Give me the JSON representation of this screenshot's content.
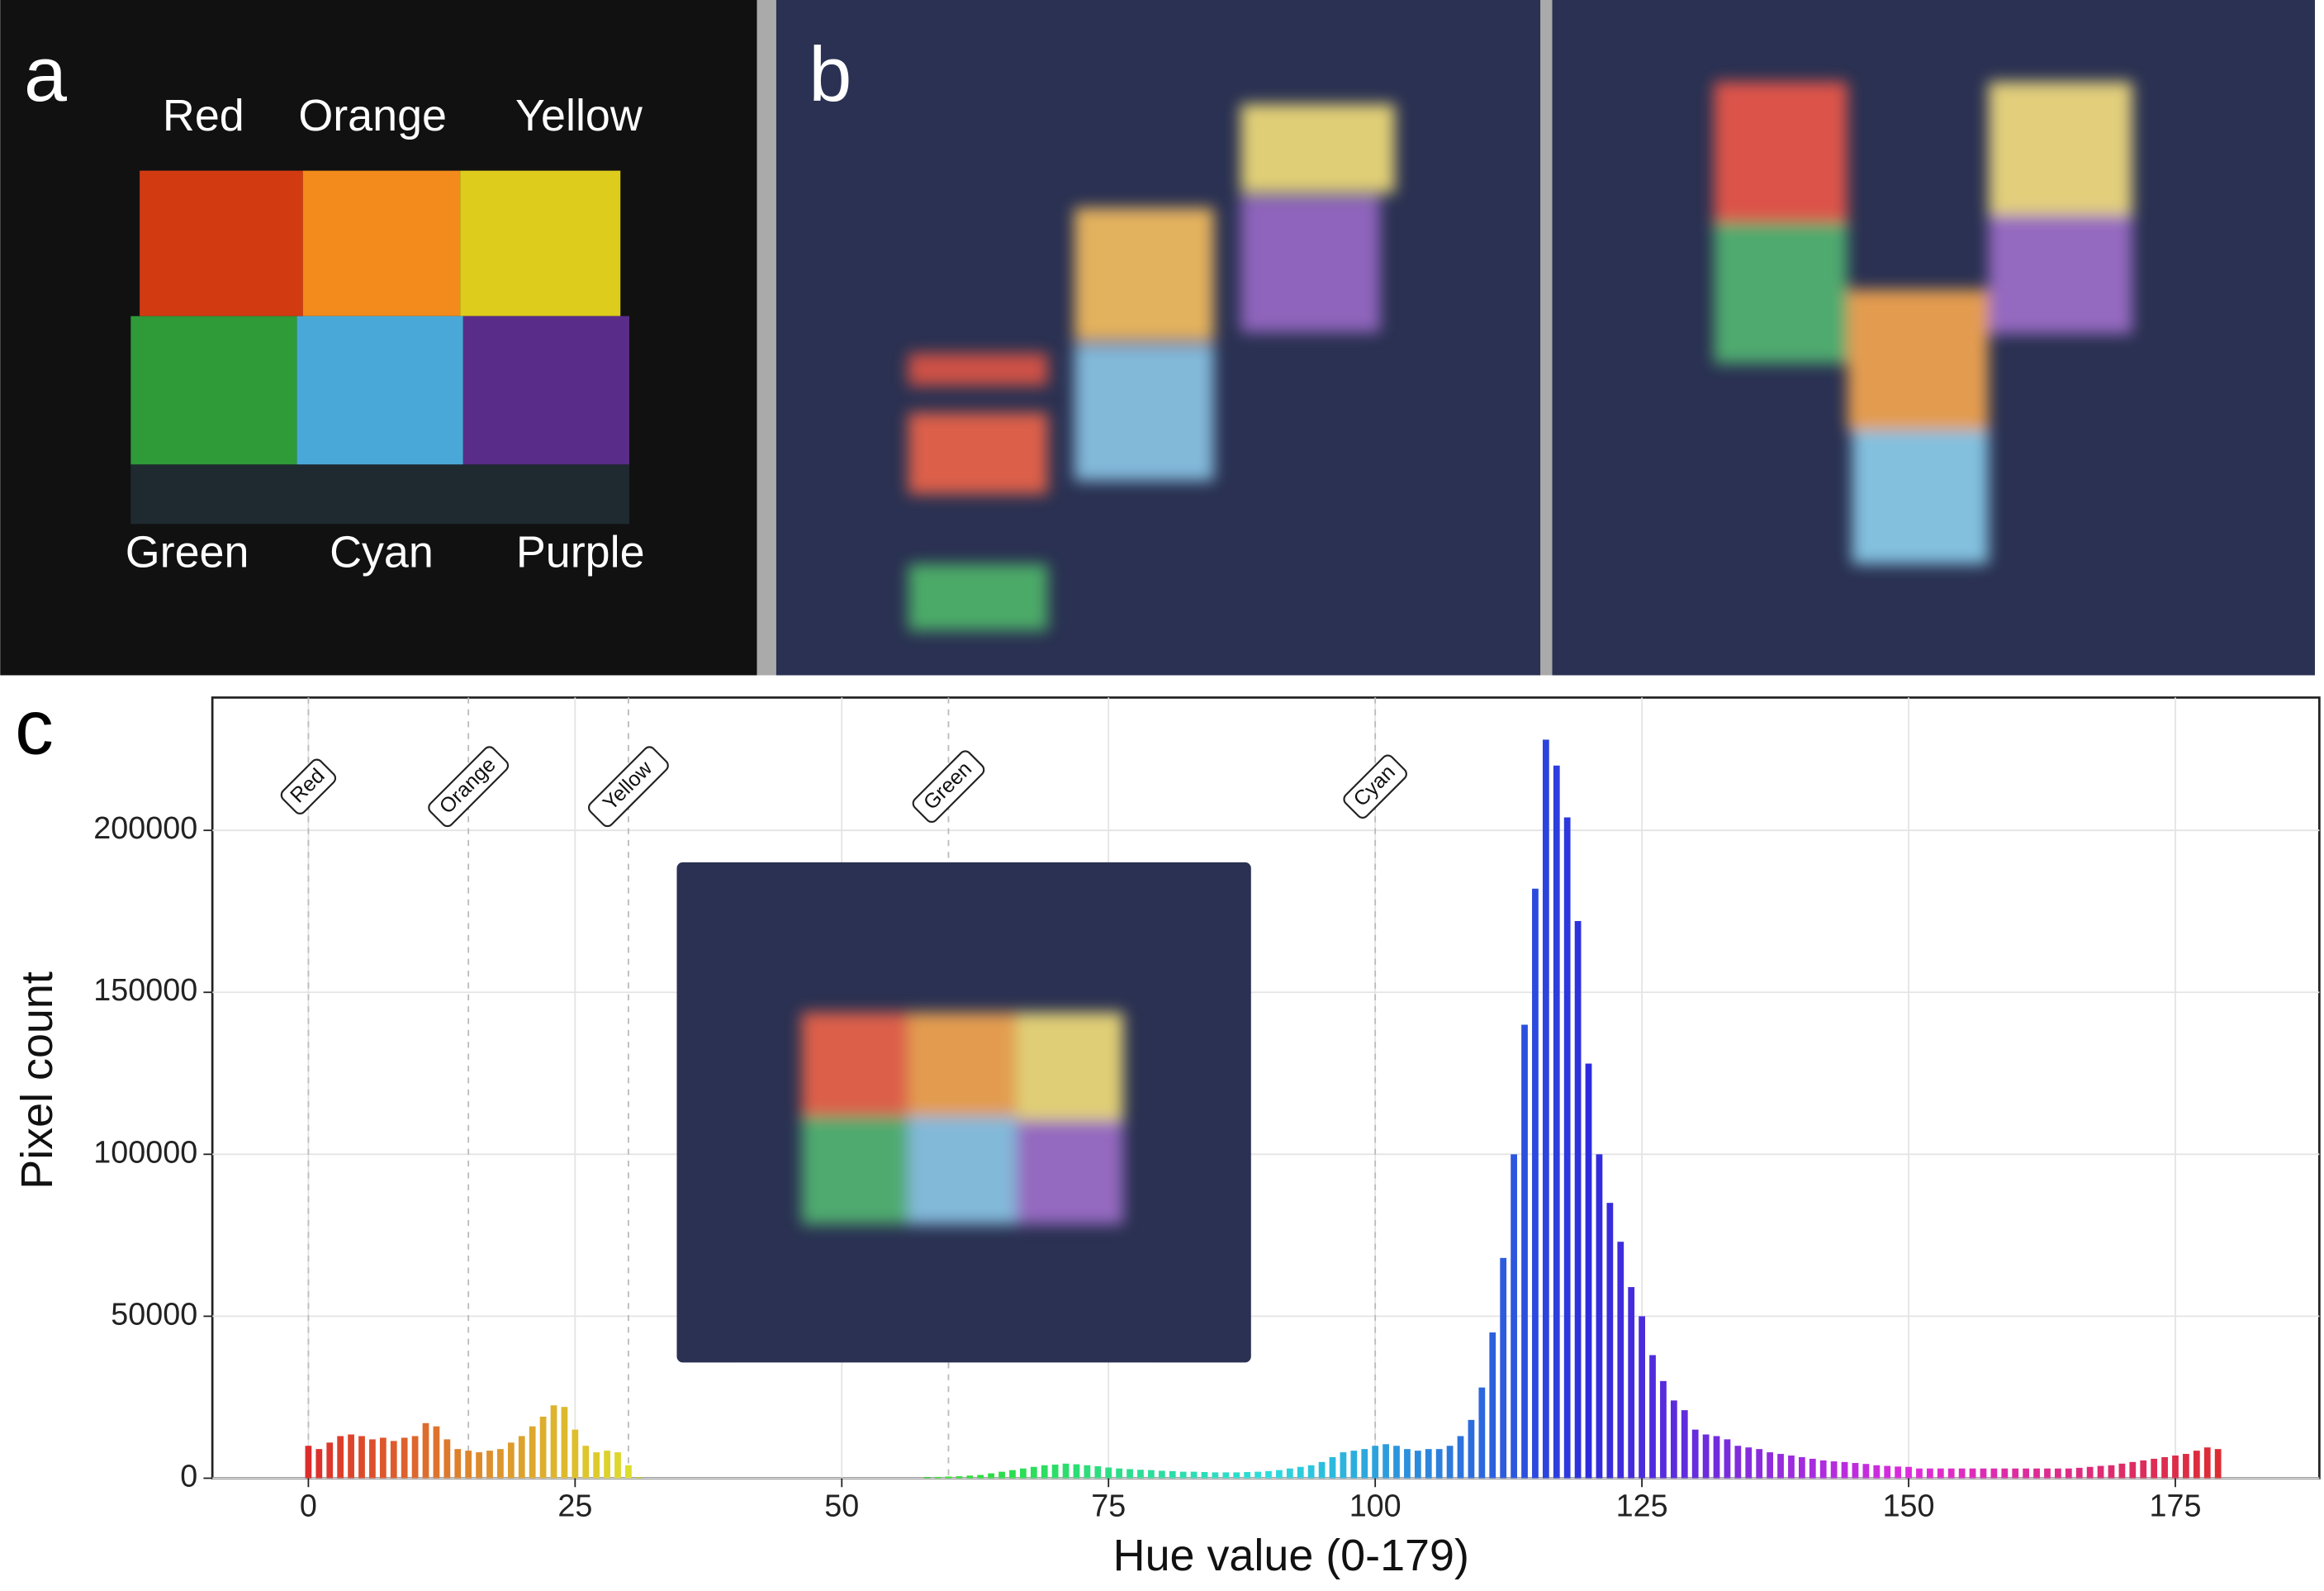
{
  "panels": {
    "a": {
      "label": "a",
      "colors": [
        "Red",
        "Orange",
        "Yellow",
        "Green",
        "Cyan",
        "Purple"
      ]
    },
    "b": {
      "label": "b"
    },
    "c": {
      "label": "c"
    }
  },
  "chart_data": {
    "type": "bar",
    "xlabel": "Hue value (0-179)",
    "ylabel": "Pixel count",
    "colormap": "hsv",
    "x": [
      0,
      1,
      2,
      3,
      4,
      5,
      6,
      7,
      8,
      9,
      10,
      11,
      12,
      13,
      14,
      15,
      16,
      17,
      18,
      19,
      20,
      21,
      22,
      23,
      24,
      25,
      26,
      27,
      28,
      29,
      30,
      31,
      32,
      33,
      34,
      35,
      36,
      37,
      38,
      39,
      40,
      41,
      42,
      43,
      44,
      45,
      46,
      47,
      48,
      49,
      50,
      51,
      52,
      53,
      54,
      55,
      56,
      57,
      58,
      59,
      60,
      61,
      62,
      63,
      64,
      65,
      66,
      67,
      68,
      69,
      70,
      71,
      72,
      73,
      74,
      75,
      76,
      77,
      78,
      79,
      80,
      81,
      82,
      83,
      84,
      85,
      86,
      87,
      88,
      89,
      90,
      91,
      92,
      93,
      94,
      95,
      96,
      97,
      98,
      99,
      100,
      101,
      102,
      103,
      104,
      105,
      106,
      107,
      108,
      109,
      110,
      111,
      112,
      113,
      114,
      115,
      116,
      117,
      118,
      119,
      120,
      121,
      122,
      123,
      124,
      125,
      126,
      127,
      128,
      129,
      130,
      131,
      132,
      133,
      134,
      135,
      136,
      137,
      138,
      139,
      140,
      141,
      142,
      143,
      144,
      145,
      146,
      147,
      148,
      149,
      150,
      151,
      152,
      153,
      154,
      155,
      156,
      157,
      158,
      159,
      160,
      161,
      162,
      163,
      164,
      165,
      166,
      167,
      168,
      169,
      170,
      171,
      172,
      173,
      174,
      175,
      176,
      177,
      178,
      179
    ],
    "values": [
      10000,
      9000,
      11000,
      13000,
      13500,
      13000,
      12000,
      12500,
      11500,
      12500,
      13000,
      17000,
      16000,
      12000,
      9000,
      8500,
      8000,
      8500,
      9000,
      11000,
      13000,
      16000,
      19000,
      22500,
      22000,
      15000,
      10000,
      8000,
      8500,
      8000,
      4000,
      300,
      0,
      0,
      0,
      0,
      0,
      0,
      0,
      0,
      0,
      0,
      0,
      0,
      0,
      0,
      0,
      0,
      0,
      0,
      0,
      0,
      0,
      0,
      0,
      0,
      0,
      0,
      300,
      400,
      500,
      600,
      800,
      1000,
      1500,
      2000,
      2500,
      3000,
      3500,
      4000,
      4200,
      4500,
      4300,
      4000,
      3700,
      3300,
      3000,
      2800,
      2600,
      2500,
      2300,
      2200,
      2000,
      2000,
      1900,
      1800,
      1800,
      1800,
      1900,
      2000,
      2200,
      2500,
      3000,
      3500,
      4000,
      5000,
      6500,
      8000,
      8500,
      9000,
      10000,
      10500,
      10000,
      9000,
      8500,
      9000,
      9000,
      10000,
      13000,
      18000,
      28000,
      45000,
      68000,
      100000,
      140000,
      182000,
      228000,
      220000,
      204000,
      172000,
      128000,
      100000,
      85000,
      73000,
      59000,
      50000,
      38000,
      30000,
      24000,
      21000,
      15000,
      13500,
      13000,
      12000,
      10000,
      9500,
      9000,
      8000,
      7500,
      7000,
      6500,
      6000,
      5500,
      5200,
      5000,
      4700,
      4400,
      4000,
      3800,
      3600,
      3500,
      3000,
      3000,
      3000,
      3000,
      3000,
      3000,
      3000,
      3000,
      3000,
      3000,
      3000,
      3000,
      3000,
      3000,
      3000,
      3200,
      3500,
      3800,
      4000,
      4500,
      5000,
      5500,
      6000,
      6500,
      7000,
      7500,
      8500,
      9500,
      9000
    ],
    "xlim": [
      -9,
      188.5
    ],
    "ylim": [
      0,
      241000
    ],
    "xticks": [
      0,
      25,
      50,
      75,
      100,
      125,
      150,
      175
    ],
    "yticks": [
      0,
      50000,
      100000,
      150000,
      200000
    ],
    "grid": true,
    "annotations": [
      {
        "text": "Red",
        "x": 0
      },
      {
        "text": "Orange",
        "x": 15
      },
      {
        "text": "Yellow",
        "x": 30
      },
      {
        "text": "Green",
        "x": 60
      },
      {
        "text": "Cyan",
        "x": 100
      }
    ]
  }
}
